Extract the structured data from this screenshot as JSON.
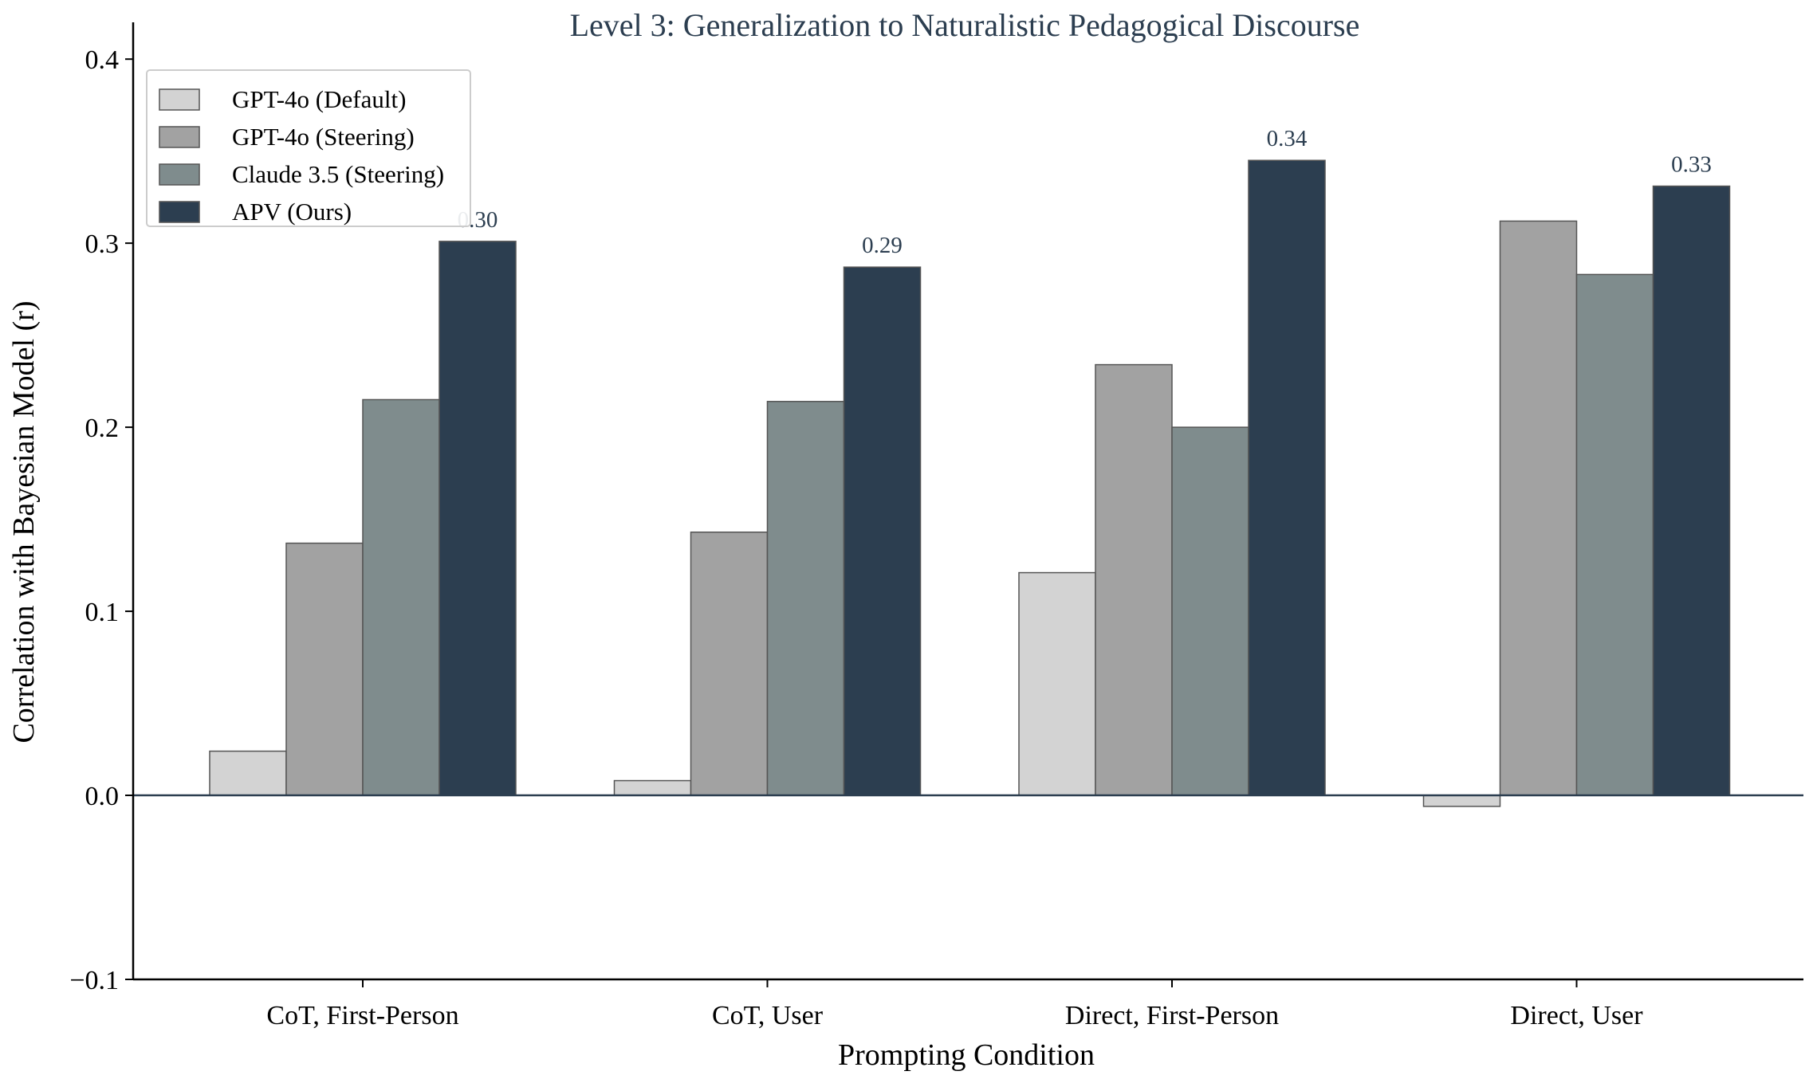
{
  "chart_data": {
    "type": "bar",
    "title": "Level 3: Generalization to Naturalistic Pedagogical Discourse",
    "xlabel": "Prompting Condition",
    "ylabel": "Correlation with Bayesian Model (r)",
    "categories": [
      "CoT, First-Person",
      "CoT, User",
      "Direct, First-Person",
      "Direct, User"
    ],
    "series": [
      {
        "name": "GPT-4o (Default)",
        "color": "#d3d3d3",
        "values": [
          0.024,
          0.008,
          0.121,
          -0.006
        ]
      },
      {
        "name": "GPT-4o (Steering)",
        "color": "#a2a2a2",
        "values": [
          0.137,
          0.143,
          0.234,
          0.312
        ]
      },
      {
        "name": "Claude 3.5 (Steering)",
        "color": "#7f8c8d",
        "values": [
          0.215,
          0.214,
          0.2,
          0.283
        ]
      },
      {
        "name": "APV (Ours)",
        "color": "#2c3e50",
        "values": [
          0.301,
          0.287,
          0.345,
          0.331
        ]
      }
    ],
    "data_labels": {
      "series": "APV (Ours)",
      "labels": [
        "0.30",
        "0.29",
        "0.34",
        "0.33"
      ]
    },
    "ylim": [
      -0.1,
      0.42
    ],
    "yticks": [
      "0.4",
      "0.3",
      "0.2",
      "0.1",
      "0.0",
      "−0.1"
    ],
    "ytick_values": [
      0.4,
      0.3,
      0.2,
      0.1,
      0.0,
      -0.1
    ],
    "grid": false,
    "legend_position": "top-left",
    "colors": {
      "title": "#2c3e50",
      "zero_line": "#2c3e50",
      "axis": "#000000",
      "bar_edge": "#555555"
    }
  }
}
